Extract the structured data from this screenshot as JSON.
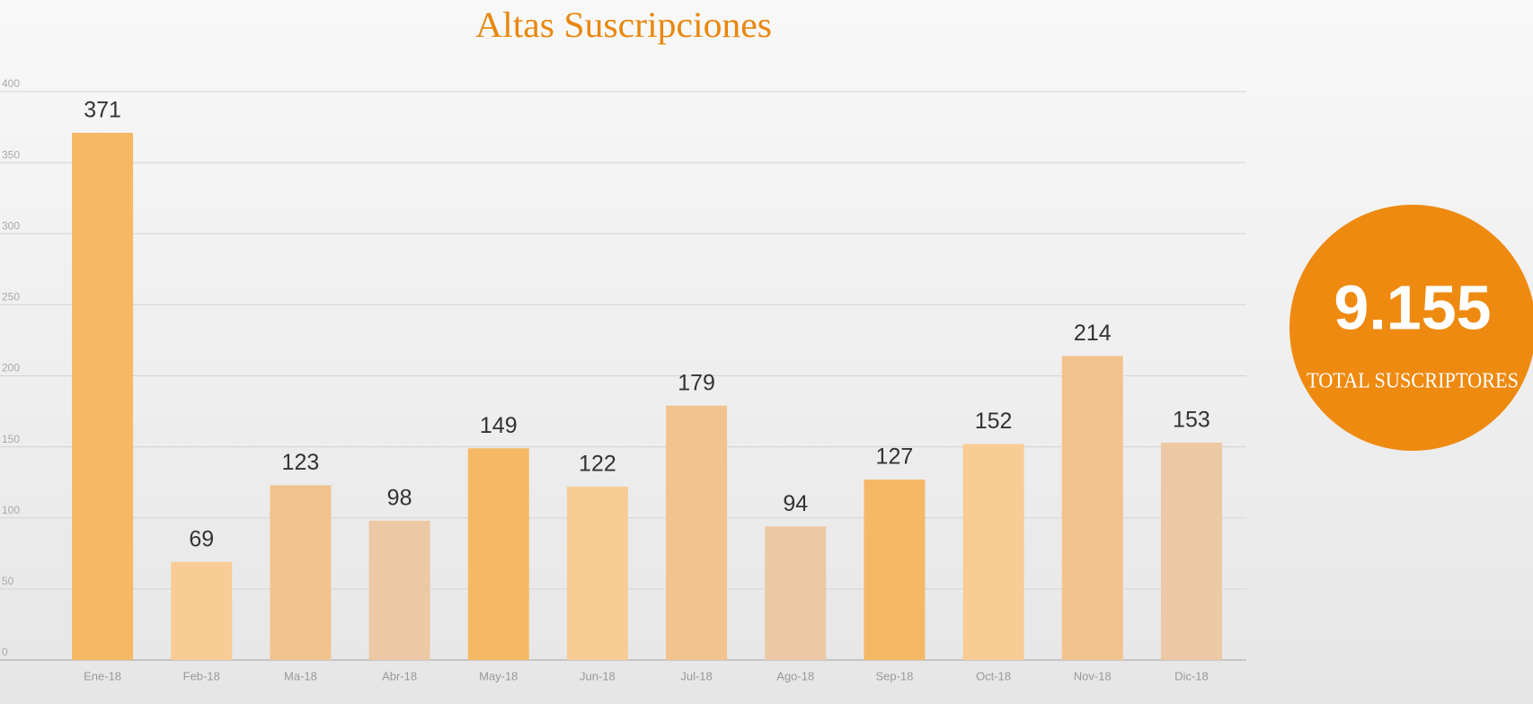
{
  "chart_data": {
    "type": "bar",
    "title": "Altas Suscripciones",
    "categories": [
      "Ene-18",
      "Feb-18",
      "Ma-18",
      "Abr-18",
      "May-18",
      "Jun-18",
      "Jul-18",
      "Ago-18",
      "Sep-18",
      "Oct-18",
      "Nov-18",
      "Dic-18"
    ],
    "values": [
      371,
      69,
      123,
      98,
      149,
      122,
      179,
      94,
      127,
      152,
      214,
      153
    ],
    "colors": [
      "#f5b865",
      "#f9cc96",
      "#f2c38f",
      "#ecc8a4",
      "#f5b865",
      "#f9cc96",
      "#f2c38f",
      "#ecc8a4",
      "#f5b865",
      "#f9cc96",
      "#f2c38f",
      "#ecc8a4"
    ],
    "ylim": [
      0,
      400
    ],
    "yticks": [
      0,
      50,
      100,
      150,
      200,
      250,
      300,
      350,
      400
    ],
    "grid": true,
    "annotations": {
      "total": "9.155",
      "total_label": "TOTAL SUSCRIPTORES"
    }
  }
}
